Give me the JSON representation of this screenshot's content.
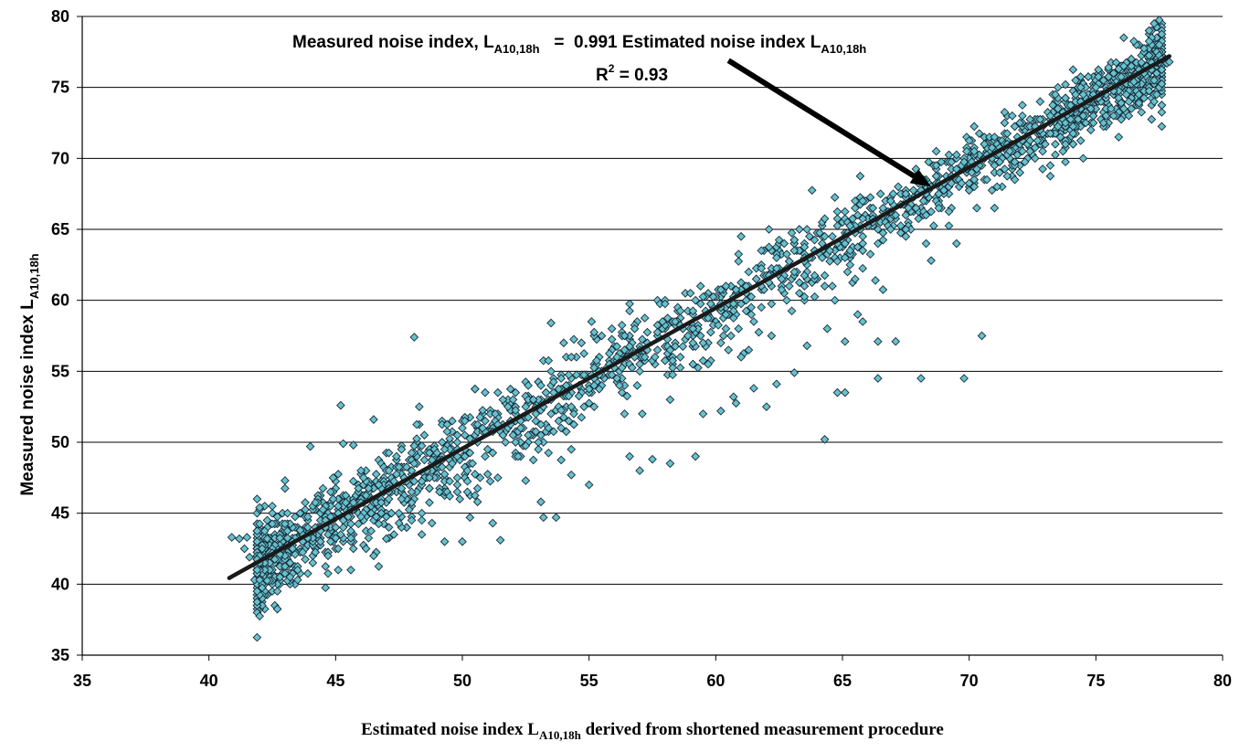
{
  "chart_data": {
    "type": "scatter",
    "title": "",
    "xlabel": {
      "main": "Estimated noise index L",
      "subscript": "A10,18h",
      "suffix": " derived from shortened measurement procedure"
    },
    "ylabel": {
      "main": "Measured noise index L",
      "subscript": "A10,18h"
    },
    "xlim": [
      35,
      80
    ],
    "ylim": [
      35,
      80
    ],
    "x_ticks": [
      35,
      40,
      45,
      50,
      55,
      60,
      65,
      70,
      75,
      80
    ],
    "y_ticks": [
      35,
      40,
      45,
      50,
      55,
      60,
      65,
      70,
      75,
      80
    ],
    "grid": "horizontal",
    "legend": "none",
    "marker": {
      "shape": "diamond",
      "fill": "#66C2CC",
      "stroke": "#1a2a3a"
    },
    "trendline": {
      "slope": 0.991,
      "intercept": 0,
      "x_range": [
        40.8,
        77.9
      ],
      "color": "#1a1a1a"
    },
    "annotation": {
      "line1_prefix": "Measured noise index, L",
      "line1_sub1": "A10,18h",
      "line1_mid": "   =  0.991 Estimated noise index L",
      "line1_sub2": "A10,18h",
      "line2_prefix": "R",
      "line2_sup": "2",
      "line2_suffix": " = 0.93",
      "arrow_tail": [
        60.5,
        76.9
      ],
      "arrow_head": [
        68.5,
        68.0
      ]
    },
    "series": [
      {
        "cluster": {
          "count": 2200,
          "x_range": [
            41.5,
            78.0
          ],
          "fit_slope": 0.991,
          "spread_sd": 1.45,
          "seed": 12345
        },
        "points": [
          [
            40.9,
            43.3
          ],
          [
            41.2,
            43.2
          ],
          [
            41.5,
            43.3
          ],
          [
            41.4,
            42.5
          ],
          [
            41.6,
            41.9
          ],
          [
            41.8,
            40.3
          ],
          [
            42.0,
            40.3
          ],
          [
            42.0,
            45.4
          ],
          [
            42.3,
            43.2
          ],
          [
            42.5,
            42.2
          ],
          [
            42.8,
            42.1
          ],
          [
            43.0,
            47.3
          ],
          [
            43.4,
            42.1
          ],
          [
            43.5,
            40.3
          ],
          [
            43.6,
            43.8
          ],
          [
            44.0,
            49.7
          ],
          [
            44.4,
            43.0
          ],
          [
            45.2,
            52.6
          ],
          [
            45.3,
            49.9
          ],
          [
            45.7,
            49.8
          ],
          [
            46.2,
            42.5
          ],
          [
            46.5,
            51.6
          ],
          [
            47.0,
            43.2
          ],
          [
            47.5,
            44.3
          ],
          [
            48.1,
            57.4
          ],
          [
            48.3,
            52.5
          ],
          [
            48.8,
            44.3
          ],
          [
            49.3,
            43.0
          ],
          [
            49.5,
            46.2
          ],
          [
            50.0,
            43.0
          ],
          [
            50.3,
            44.7
          ],
          [
            50.6,
            45.8
          ],
          [
            51.2,
            44.3
          ],
          [
            51.5,
            43.1
          ],
          [
            52.5,
            47.3
          ],
          [
            53.1,
            45.8
          ],
          [
            53.2,
            44.7
          ],
          [
            53.5,
            58.4
          ],
          [
            53.7,
            44.7
          ],
          [
            54.3,
            47.7
          ],
          [
            55.0,
            47.0
          ],
          [
            55.1,
            58.5
          ],
          [
            56.6,
            49.0
          ],
          [
            57.0,
            48.0
          ],
          [
            57.5,
            48.8
          ],
          [
            58.2,
            48.5
          ],
          [
            59.2,
            49.0
          ],
          [
            59.5,
            52.0
          ],
          [
            60.2,
            52.2
          ],
          [
            60.7,
            53.2
          ],
          [
            61.5,
            53.8
          ],
          [
            62.0,
            52.5
          ],
          [
            62.4,
            54.1
          ],
          [
            63.1,
            54.9
          ],
          [
            63.6,
            56.8
          ],
          [
            64.3,
            50.2
          ],
          [
            64.8,
            53.5
          ],
          [
            65.1,
            53.5
          ],
          [
            65.1,
            57.1
          ],
          [
            65.6,
            59.0
          ],
          [
            66.3,
            61.4
          ],
          [
            66.4,
            57.1
          ],
          [
            66.4,
            54.5
          ],
          [
            67.1,
            57.1
          ],
          [
            68.1,
            54.5
          ],
          [
            68.5,
            62.8
          ],
          [
            69.8,
            54.5
          ],
          [
            70.5,
            57.5
          ],
          [
            73.8,
            75.2
          ],
          [
            74.2,
            75.5
          ],
          [
            74.5,
            73.0
          ],
          [
            74.9,
            73.0
          ],
          [
            75.5,
            76.4
          ],
          [
            75.9,
            76.3
          ],
          [
            76.0,
            73.9
          ],
          [
            76.3,
            74.0
          ],
          [
            76.5,
            75.4
          ],
          [
            76.7,
            73.9
          ],
          [
            77.8,
            76.7
          ],
          [
            77.9,
            76.8
          ]
        ]
      }
    ]
  }
}
